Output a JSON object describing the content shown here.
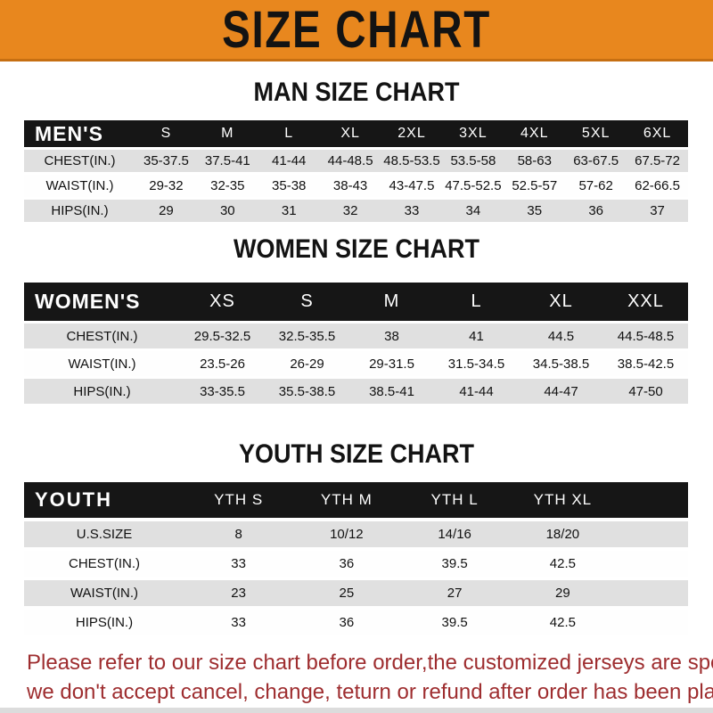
{
  "banner": {
    "title": "SIZE CHART"
  },
  "colors": {
    "banner_bg": "#E8871E",
    "banner_edge": "#C66F12",
    "bar_bg": "#161616",
    "bar_text": "#FFFFFF",
    "row_gray": "#E0E0E0",
    "footer_red": "#9E2D2F"
  },
  "sections": [
    {
      "heading": "MAN SIZE CHART",
      "table": {
        "label": "MEN'S",
        "sizes": [
          "S",
          "M",
          "L",
          "XL",
          "2XL",
          "3XL",
          "4XL",
          "5XL",
          "6XL"
        ],
        "rows": [
          {
            "label": "CHEST(IN.)",
            "values": [
              "35-37.5",
              "37.5-41",
              "41-44",
              "44-48.5",
              "48.5-53.5",
              "53.5-58",
              "58-63",
              "63-67.5",
              "67.5-72"
            ]
          },
          {
            "label": "WAIST(IN.)",
            "values": [
              "29-32",
              "32-35",
              "35-38",
              "38-43",
              "43-47.5",
              "47.5-52.5",
              "52.5-57",
              "57-62",
              "62-66.5"
            ]
          },
          {
            "label": "HIPS(IN.)",
            "values": [
              "29",
              "30",
              "31",
              "32",
              "33",
              "34",
              "35",
              "36",
              "37"
            ]
          }
        ]
      }
    },
    {
      "heading": "WOMEN SIZE CHART",
      "table": {
        "label": "WOMEN'S",
        "sizes": [
          "XS",
          "S",
          "M",
          "L",
          "XL",
          "XXL"
        ],
        "rows": [
          {
            "label": "CHEST(IN.)",
            "values": [
              "29.5-32.5",
              "32.5-35.5",
              "38",
              "41",
              "44.5",
              "44.5-48.5"
            ]
          },
          {
            "label": "WAIST(IN.)",
            "values": [
              "23.5-26",
              "26-29",
              "29-31.5",
              "31.5-34.5",
              "34.5-38.5",
              "38.5-42.5"
            ]
          },
          {
            "label": "HIPS(IN.)",
            "values": [
              "33-35.5",
              "35.5-38.5",
              "38.5-41",
              "41-44",
              "44-47",
              "47-50"
            ]
          }
        ]
      }
    },
    {
      "heading": "YOUTH SIZE CHART",
      "table": {
        "label": "YOUTH",
        "sizes": [
          "YTH S",
          "YTH M",
          "YTH L",
          "YTH XL"
        ],
        "rows": [
          {
            "label": "U.S.SIZE",
            "values": [
              "8",
              "10/12",
              "14/16",
              "18/20"
            ]
          },
          {
            "label": "CHEST(IN.)",
            "values": [
              "33",
              "36",
              "39.5",
              "42.5"
            ]
          },
          {
            "label": "WAIST(IN.)",
            "values": [
              "23",
              "25",
              "27",
              "29"
            ]
          },
          {
            "label": "HIPS(IN.)",
            "values": [
              "33",
              "36",
              "39.5",
              "42.5"
            ]
          }
        ]
      }
    }
  ],
  "footer": {
    "line1": "Please refer to our size chart before order,the customized jerseys are special products,",
    "line2": "we don't accept cancel, change, teturn or refund after order has been placed!"
  }
}
